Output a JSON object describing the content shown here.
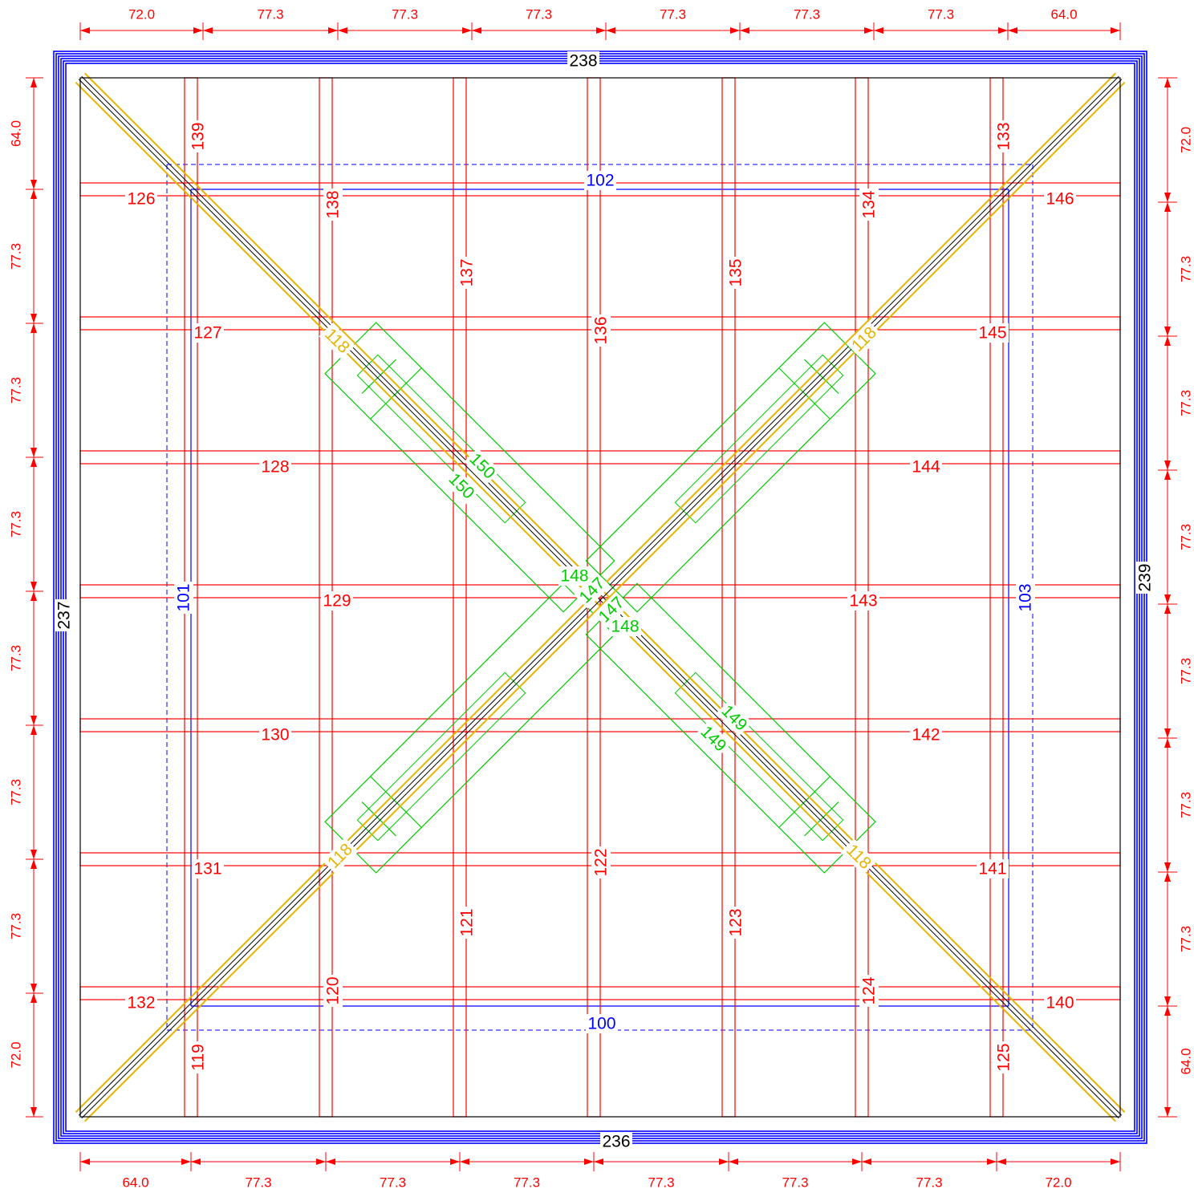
{
  "dimensions": {
    "top": [
      "72.0",
      "77.3",
      "77.3",
      "77.3",
      "77.3",
      "77.3",
      "77.3",
      "64.0"
    ],
    "bottom": [
      "64.0",
      "77.3",
      "77.3",
      "77.3",
      "77.3",
      "77.3",
      "77.3",
      "72.0"
    ],
    "left": [
      "64.0",
      "77.3",
      "77.3",
      "77.3",
      "77.3",
      "77.3",
      "77.3",
      "72.0"
    ],
    "right": [
      "72.0",
      "77.3",
      "77.3",
      "77.3",
      "77.3",
      "77.3",
      "77.3",
      "64.0"
    ]
  },
  "edge_beams": {
    "top": "238",
    "bottom": "236",
    "left": "237",
    "right": "239"
  },
  "ring_beams": {
    "bottom": "100",
    "left": "101",
    "top": "102",
    "right": "103"
  },
  "vertical_beams_top": [
    "139",
    "138",
    "137",
    "136",
    "135",
    "134",
    "133"
  ],
  "vertical_beams_bottom": [
    "119",
    "120",
    "121",
    "122",
    "123",
    "124",
    "125"
  ],
  "horizontal_beams_left": [
    "126",
    "127",
    "128",
    "129",
    "130",
    "131",
    "132"
  ],
  "horizontal_beams_right": [
    "146",
    "145",
    "144",
    "143",
    "142",
    "141",
    "140"
  ],
  "diagonal_beam_label": "118",
  "center_braces": {
    "nw_upper": "150",
    "nw_lower": "150",
    "se_upper": "149",
    "se_lower": "149",
    "center_a": "147",
    "center_b": "147",
    "left_short": "148",
    "right_short": "148"
  },
  "colors": {
    "dimension": "#ff0000",
    "beam": "#ff0000",
    "ring_beam": "#0000ff",
    "edge_beam": "#0000ff",
    "diagonal": "#e6b400",
    "brace": "#00cc00",
    "outline": "#000000"
  }
}
